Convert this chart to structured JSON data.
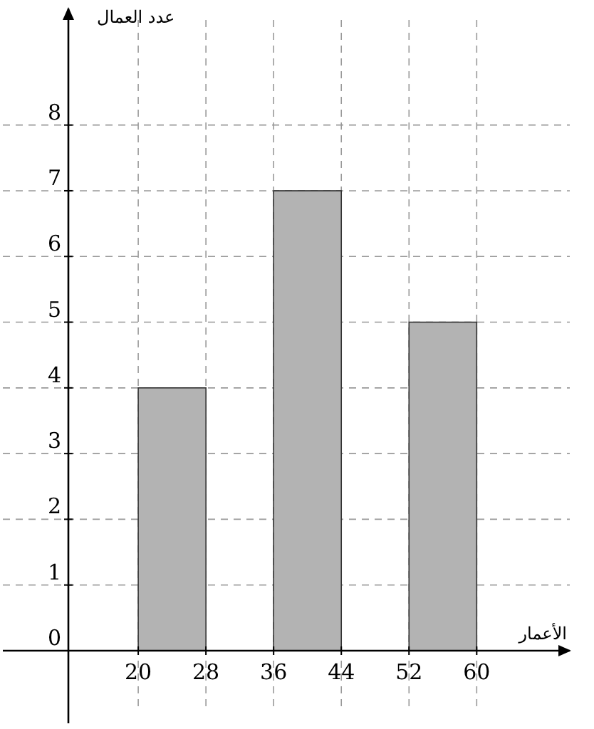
{
  "chart_data": {
    "type": "histogram",
    "xlabel": "الأعمار",
    "ylabel": "عدد العمال",
    "bins": [
      20,
      28,
      36,
      44,
      52,
      60
    ],
    "values": [
      4,
      0,
      7,
      0,
      5
    ],
    "color": "#b3b3b3",
    "xlim": [
      4,
      71
    ],
    "ylim": [
      0,
      9.6
    ],
    "xticks": [
      20,
      28,
      36,
      44,
      52,
      60
    ],
    "yticks": [
      0,
      1,
      2,
      3,
      4,
      5,
      6,
      7,
      8
    ],
    "grid": true
  }
}
